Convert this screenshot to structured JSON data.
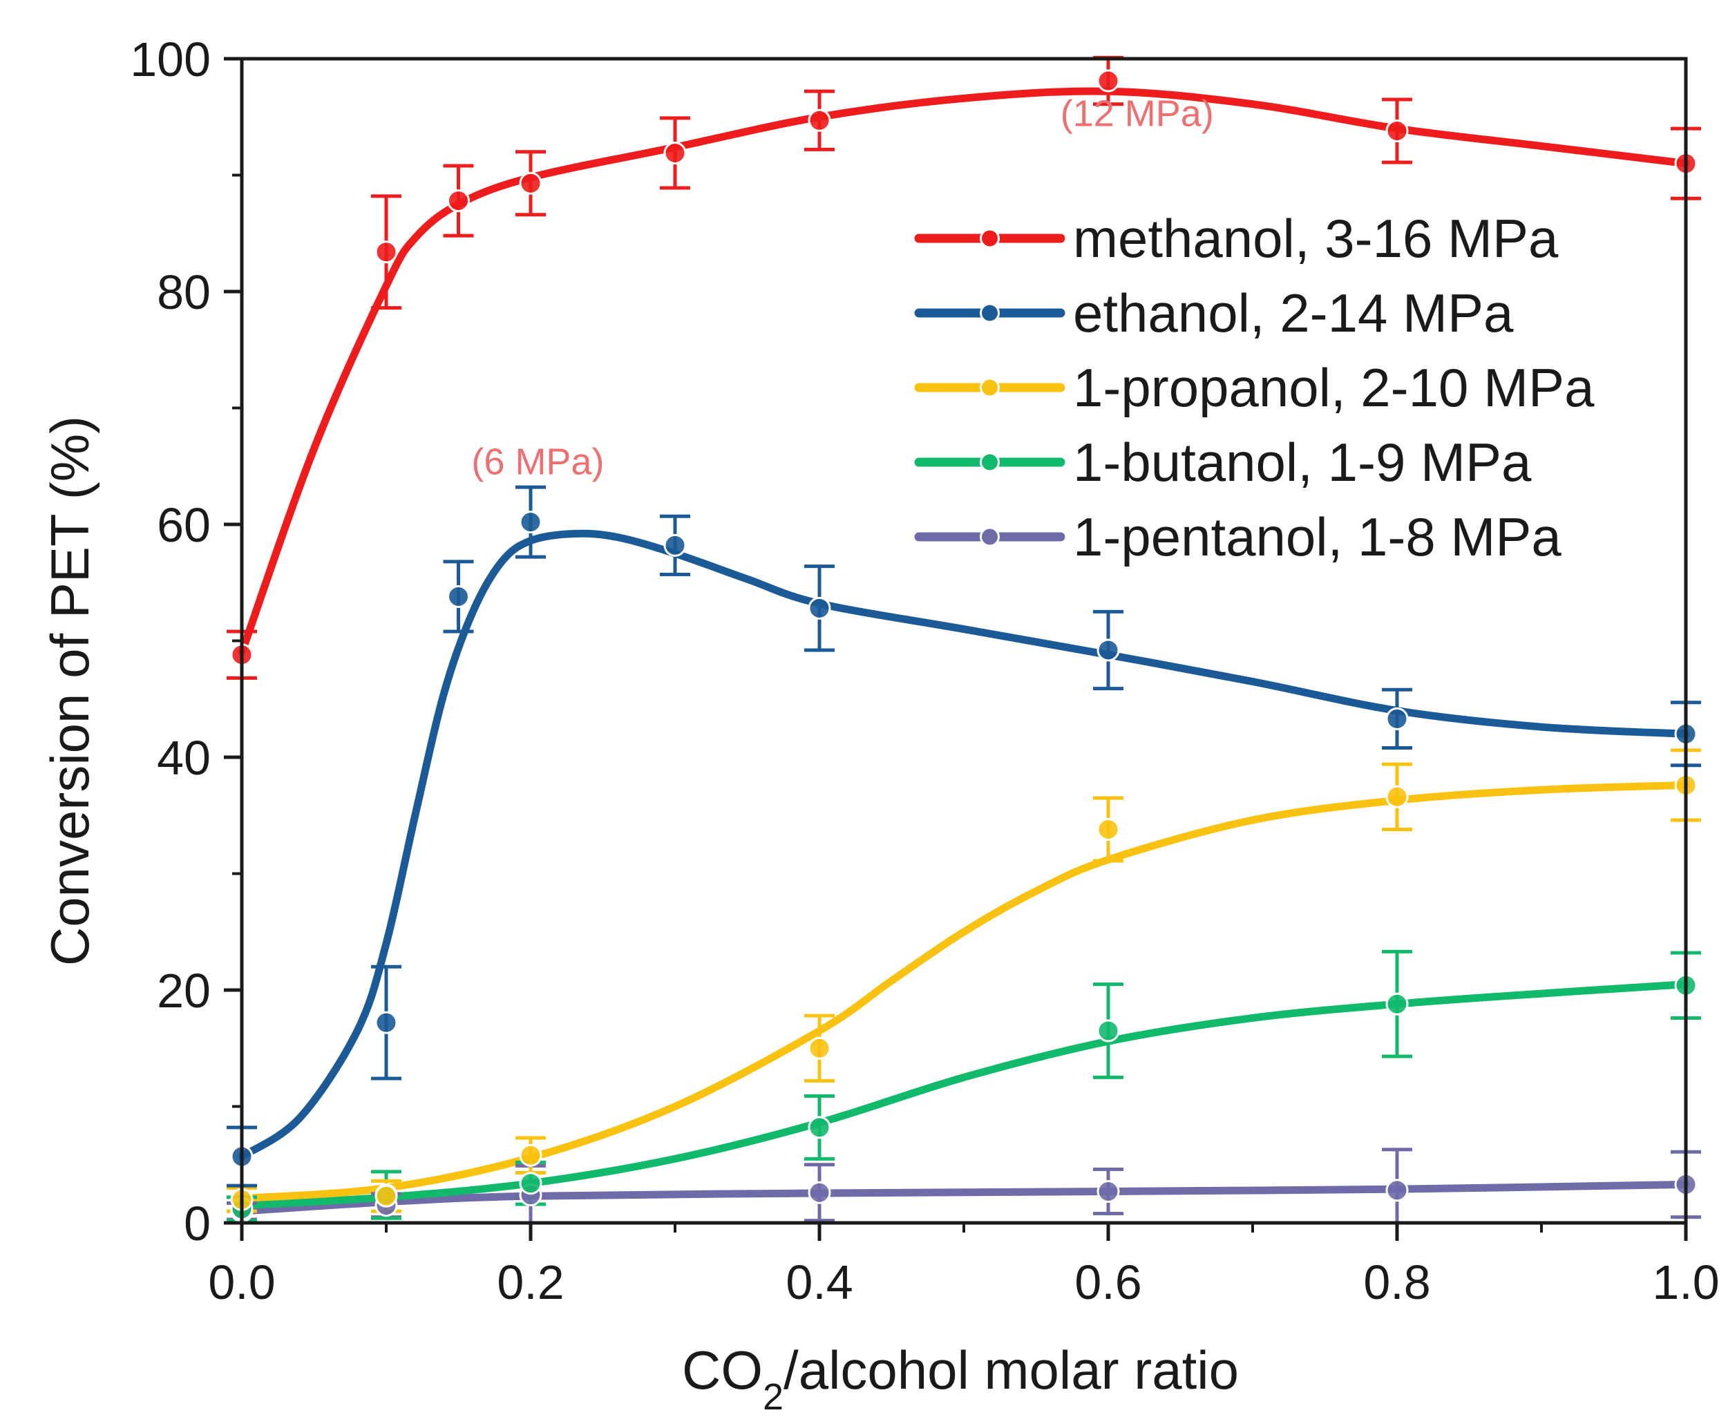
{
  "chart_data": {
    "type": "line",
    "title": "",
    "xlabel": {
      "main": "CO",
      "sub": "2",
      "rest": "/alcohol molar ratio"
    },
    "ylabel": "Conversion of PET (%)",
    "xlim": [
      0.0,
      1.0
    ],
    "ylim": [
      0,
      100
    ],
    "xticks": [
      0.0,
      0.2,
      0.4,
      0.6,
      0.8,
      1.0
    ],
    "xtick_labels": [
      "0.0",
      "0.2",
      "0.4",
      "0.6",
      "0.8",
      "1.0"
    ],
    "yticks": [
      0,
      20,
      40,
      60,
      80,
      100
    ],
    "ytick_labels": [
      "0",
      "20",
      "40",
      "60",
      "80",
      "100"
    ],
    "x_minor_step": 0.1,
    "y_minor_step": 10,
    "grid": false,
    "legend_position": "upper-right",
    "series": [
      {
        "name": "methanol, 3-16 MPa",
        "color": "#ee1c1c",
        "x": [
          0.0,
          0.1,
          0.15,
          0.2,
          0.3,
          0.4,
          0.6,
          0.8,
          1.0
        ],
        "y": [
          48.8,
          83.4,
          87.8,
          89.3,
          91.9,
          94.7,
          98.1,
          93.8,
          91.0
        ],
        "err": [
          2.0,
          4.8,
          3.0,
          2.7,
          3.0,
          2.5,
          2.0,
          2.7,
          3.0
        ],
        "fit_x": [
          0.0,
          0.05,
          0.1,
          0.12,
          0.15,
          0.2,
          0.3,
          0.4,
          0.5,
          0.6,
          0.7,
          0.8,
          0.9,
          1.0
        ],
        "fit_y": [
          49.0,
          66.5,
          80.5,
          84.6,
          87.5,
          89.8,
          92.4,
          95.0,
          96.6,
          97.2,
          96.1,
          94.0,
          92.5,
          91.0
        ]
      },
      {
        "name": "ethanol, 2-14 MPa",
        "color": "#1b5a96",
        "x": [
          0.0,
          0.1,
          0.15,
          0.2,
          0.3,
          0.4,
          0.6,
          0.8,
          1.0
        ],
        "y": [
          5.7,
          17.2,
          53.8,
          60.2,
          58.2,
          52.8,
          49.2,
          43.3,
          42.0
        ],
        "err": [
          2.5,
          4.8,
          3.0,
          3.0,
          2.5,
          3.6,
          3.3,
          2.5,
          2.7
        ],
        "fit_x": [
          0.0,
          0.04,
          0.08,
          0.1,
          0.12,
          0.14,
          0.16,
          0.18,
          0.2,
          0.23,
          0.26,
          0.3,
          0.35,
          0.4,
          0.5,
          0.6,
          0.7,
          0.8,
          0.9,
          1.0
        ],
        "fit_y": [
          5.7,
          9.0,
          16.5,
          24.0,
          35.0,
          45.5,
          52.5,
          56.8,
          58.6,
          59.2,
          58.9,
          57.5,
          55.3,
          53.2,
          51.0,
          48.8,
          46.5,
          44.0,
          42.6,
          42.0
        ]
      },
      {
        "name": "1-propanol, 2-10 MPa",
        "color": "#f9c210",
        "x": [
          0.0,
          0.1,
          0.2,
          0.4,
          0.6,
          0.8,
          1.0
        ],
        "y": [
          2.0,
          2.3,
          5.8,
          15.0,
          33.8,
          36.6,
          37.6
        ],
        "err": [
          1.0,
          1.3,
          1.5,
          2.8,
          2.7,
          2.8,
          3.0
        ],
        "fit_x": [
          0.0,
          0.1,
          0.2,
          0.3,
          0.4,
          0.45,
          0.5,
          0.55,
          0.6,
          0.7,
          0.8,
          0.9,
          1.0
        ],
        "fit_y": [
          2.1,
          3.0,
          5.6,
          10.0,
          16.5,
          20.8,
          25.0,
          28.5,
          31.2,
          34.6,
          36.3,
          37.2,
          37.6
        ]
      },
      {
        "name": "1-butanol, 1-9 MPa",
        "color": "#11b96b",
        "x": [
          0.0,
          0.1,
          0.2,
          0.4,
          0.6,
          0.8,
          1.0
        ],
        "y": [
          1.2,
          2.4,
          3.4,
          8.2,
          16.5,
          18.8,
          20.4
        ],
        "err": [
          1.0,
          2.0,
          1.8,
          2.7,
          4.0,
          4.5,
          2.8
        ],
        "fit_x": [
          0.0,
          0.1,
          0.2,
          0.3,
          0.4,
          0.5,
          0.6,
          0.7,
          0.8,
          0.9,
          1.0
        ],
        "fit_y": [
          1.5,
          2.2,
          3.4,
          5.5,
          8.6,
          12.5,
          15.6,
          17.6,
          18.8,
          19.7,
          20.5
        ]
      },
      {
        "name": "1-pentanol, 1-8 MPa",
        "color": "#6f6aa8",
        "x": [
          0.0,
          0.1,
          0.2,
          0.4,
          0.6,
          0.8,
          1.0
        ],
        "y": [
          1.0,
          1.5,
          2.4,
          2.6,
          2.7,
          2.8,
          3.3
        ],
        "err": [
          0.7,
          1.0,
          2.5,
          2.4,
          1.9,
          3.5,
          2.8
        ],
        "fit_x": [
          0.0,
          0.1,
          0.2,
          0.4,
          0.6,
          0.8,
          1.0
        ],
        "fit_y": [
          1.0,
          1.8,
          2.3,
          2.55,
          2.7,
          2.9,
          3.3
        ]
      }
    ],
    "annotations": [
      {
        "text": "(12 MPa)",
        "x": 0.62,
        "y": 94.2,
        "color": "#ee6f6f"
      },
      {
        "text": "(6 MPa)",
        "x": 0.205,
        "y": 64.3,
        "color": "#ee6f6f"
      }
    ]
  }
}
